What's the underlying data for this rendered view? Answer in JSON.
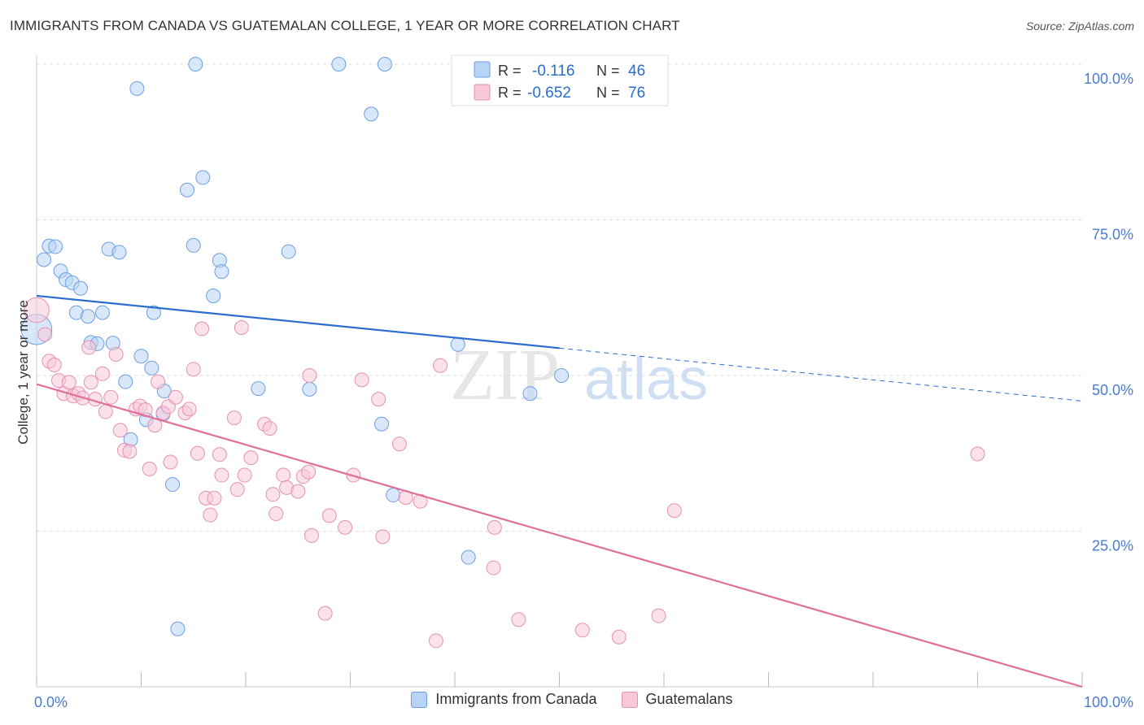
{
  "title": "IMMIGRANTS FROM CANADA VS GUATEMALAN COLLEGE, 1 YEAR OR MORE CORRELATION CHART",
  "source": "Source: ZipAtlas.com",
  "watermark": {
    "zip": "ZIP",
    "atlas": "atlas"
  },
  "legend_box": {
    "rows": [
      {
        "r_label": "R =",
        "r_value": "-0.116",
        "n_label": "N =",
        "n_value": "46"
      },
      {
        "r_label": "R =",
        "r_value": "-0.652",
        "n_label": "N =",
        "n_value": "76"
      }
    ]
  },
  "legend_bottom": {
    "series1": "Immigrants from Canada",
    "series2": "Guatemalans"
  },
  "chart_data": {
    "type": "scatter",
    "title": "IMMIGRANTS FROM CANADA VS GUATEMALAN COLLEGE, 1 YEAR OR MORE CORRELATION CHART",
    "xlabel": "",
    "ylabel": "College, 1 year or more",
    "xlim": [
      0,
      100
    ],
    "ylim": [
      0,
      100
    ],
    "x_tick_labels": [
      "0.0%",
      "100.0%"
    ],
    "y_tick_labels": [
      "100.0%",
      "75.0%",
      "50.0%",
      "25.0%"
    ],
    "y_ticks": [
      100,
      75,
      50,
      25
    ],
    "colors": {
      "blue": "#6e9fe0",
      "blue_fill": "#b8d3f5",
      "pink": "#e592b0",
      "pink_fill": "#f8c8d8",
      "blue_line": "#2a6ccf",
      "pink_line": "#e0709a",
      "tick_text": "#4a7bd0"
    },
    "series": [
      {
        "name": "Immigrants from Canada",
        "r": -0.116,
        "n": 46,
        "trend": {
          "x0": 0,
          "y0": 62.8,
          "x1": 50,
          "y1": 54.4,
          "dash_x1": 100,
          "dash_y1": 45.9
        },
        "points": [
          [
            0.0,
            57.4,
            22
          ],
          [
            0.7,
            68.6,
            10
          ],
          [
            1.2,
            70.8,
            10
          ],
          [
            1.8,
            70.7,
            10
          ],
          [
            2.3,
            66.8,
            10
          ],
          [
            2.8,
            65.4,
            10
          ],
          [
            3.4,
            64.9,
            10
          ],
          [
            4.2,
            64.0,
            10
          ],
          [
            3.8,
            60.1,
            10
          ],
          [
            4.9,
            59.5,
            10
          ],
          [
            6.3,
            60.1,
            10
          ],
          [
            5.2,
            55.3,
            10
          ],
          [
            5.8,
            55.1,
            10
          ],
          [
            7.3,
            55.2,
            10
          ],
          [
            6.9,
            70.3,
            10
          ],
          [
            7.9,
            69.8,
            10
          ],
          [
            8.5,
            49.0,
            10
          ],
          [
            9.0,
            39.7,
            10
          ],
          [
            10.0,
            53.1,
            10
          ],
          [
            11.0,
            51.2,
            10
          ],
          [
            11.2,
            60.1,
            10
          ],
          [
            10.5,
            42.9,
            10
          ],
          [
            12.2,
            47.5,
            10
          ],
          [
            12.1,
            43.8,
            10
          ],
          [
            13.0,
            32.5,
            10
          ],
          [
            13.5,
            9.3,
            10
          ],
          [
            14.4,
            79.8,
            10
          ],
          [
            15.0,
            70.9,
            10
          ],
          [
            15.9,
            81.8,
            10
          ],
          [
            16.9,
            62.8,
            10
          ],
          [
            17.5,
            68.5,
            10
          ],
          [
            17.7,
            66.7,
            10
          ],
          [
            21.2,
            47.9,
            10
          ],
          [
            24.1,
            69.9,
            10
          ],
          [
            26.1,
            47.8,
            10
          ],
          [
            28.9,
            100.0,
            10
          ],
          [
            15.2,
            100.0,
            10
          ],
          [
            9.6,
            96.1,
            10
          ],
          [
            33.3,
            100.0,
            10
          ],
          [
            32.0,
            92.0,
            10
          ],
          [
            33.0,
            42.2,
            10
          ],
          [
            34.1,
            30.8,
            10
          ],
          [
            40.3,
            55.0,
            10
          ],
          [
            41.3,
            20.8,
            10
          ],
          [
            47.2,
            47.1,
            10
          ],
          [
            50.2,
            50.0,
            10
          ]
        ]
      },
      {
        "name": "Guatemalans",
        "r": -0.652,
        "n": 76,
        "trend": {
          "x0": 0,
          "y0": 48.6,
          "x1": 100,
          "y1": 0.0
        },
        "points": [
          [
            0.0,
            60.5,
            18
          ],
          [
            0.8,
            56.6,
            10
          ],
          [
            1.2,
            52.3,
            10
          ],
          [
            1.7,
            51.7,
            10
          ],
          [
            2.1,
            49.2,
            10
          ],
          [
            2.6,
            47.1,
            10
          ],
          [
            3.1,
            48.9,
            10
          ],
          [
            3.5,
            46.7,
            10
          ],
          [
            4.0,
            47.1,
            10
          ],
          [
            4.4,
            46.4,
            10
          ],
          [
            5.2,
            48.9,
            10
          ],
          [
            5.6,
            46.2,
            10
          ],
          [
            6.3,
            50.3,
            10
          ],
          [
            6.6,
            44.2,
            10
          ],
          [
            7.1,
            46.5,
            10
          ],
          [
            7.6,
            53.4,
            10
          ],
          [
            8.0,
            41.2,
            10
          ],
          [
            8.4,
            38.0,
            10
          ],
          [
            8.9,
            37.8,
            10
          ],
          [
            9.5,
            44.6,
            10
          ],
          [
            9.9,
            45.1,
            10
          ],
          [
            10.4,
            44.5,
            10
          ],
          [
            10.8,
            35.0,
            10
          ],
          [
            11.3,
            42.0,
            10
          ],
          [
            11.6,
            49.0,
            10
          ],
          [
            12.1,
            44.0,
            10
          ],
          [
            12.6,
            45.0,
            10
          ],
          [
            12.8,
            36.1,
            10
          ],
          [
            13.3,
            46.5,
            10
          ],
          [
            14.2,
            44.0,
            10
          ],
          [
            14.6,
            44.6,
            10
          ],
          [
            15.0,
            51.0,
            10
          ],
          [
            15.4,
            37.5,
            10
          ],
          [
            15.8,
            57.5,
            10
          ],
          [
            16.2,
            30.3,
            10
          ],
          [
            16.6,
            27.6,
            10
          ],
          [
            17.0,
            30.3,
            10
          ],
          [
            17.5,
            37.3,
            10
          ],
          [
            17.7,
            34.0,
            10
          ],
          [
            18.9,
            43.2,
            10
          ],
          [
            19.2,
            31.7,
            10
          ],
          [
            19.6,
            57.7,
            10
          ],
          [
            19.9,
            34.0,
            10
          ],
          [
            20.5,
            36.8,
            10
          ],
          [
            21.8,
            42.2,
            10
          ],
          [
            22.3,
            41.5,
            10
          ],
          [
            22.6,
            30.9,
            10
          ],
          [
            22.9,
            27.8,
            10
          ],
          [
            23.6,
            34.0,
            10
          ],
          [
            23.9,
            32.0,
            10
          ],
          [
            25.0,
            31.4,
            10
          ],
          [
            25.5,
            33.8,
            10
          ],
          [
            26.0,
            34.5,
            10
          ],
          [
            26.1,
            50.0,
            10
          ],
          [
            26.3,
            24.3,
            10
          ],
          [
            27.6,
            11.8,
            10
          ],
          [
            28.0,
            27.5,
            10
          ],
          [
            29.5,
            25.6,
            10
          ],
          [
            30.3,
            34.0,
            10
          ],
          [
            31.1,
            49.3,
            10
          ],
          [
            32.7,
            46.2,
            10
          ],
          [
            33.1,
            24.1,
            10
          ],
          [
            34.7,
            39.0,
            10
          ],
          [
            35.3,
            30.4,
            10
          ],
          [
            36.7,
            29.8,
            10
          ],
          [
            38.2,
            7.4,
            10
          ],
          [
            38.6,
            51.6,
            10
          ],
          [
            43.8,
            25.6,
            10
          ],
          [
            43.7,
            19.1,
            10
          ],
          [
            46.1,
            10.8,
            10
          ],
          [
            52.2,
            9.1,
            10
          ],
          [
            55.7,
            8.0,
            10
          ],
          [
            59.5,
            11.4,
            10
          ],
          [
            61.0,
            28.3,
            10
          ],
          [
            90.0,
            37.4,
            10
          ],
          [
            5.0,
            54.5,
            10
          ]
        ]
      }
    ]
  }
}
